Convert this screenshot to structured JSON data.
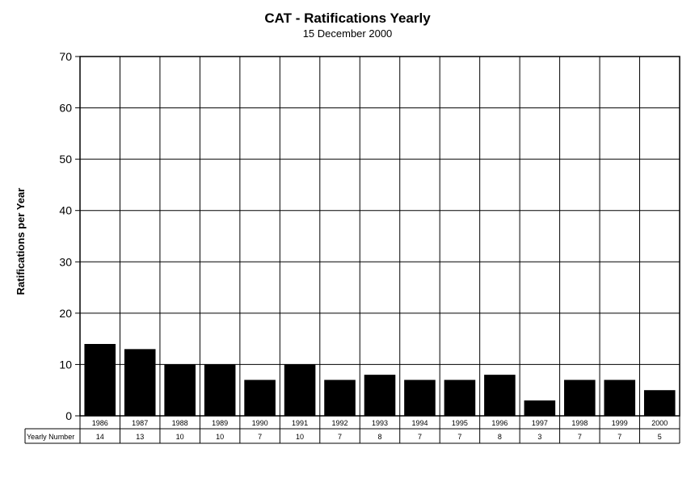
{
  "chart_data": {
    "type": "bar",
    "title": "CAT - Ratifications Yearly",
    "subtitle": "15 December 2000",
    "ylabel": "Ratifications per Year",
    "xlabel": "",
    "ylim": [
      0,
      70
    ],
    "yticks": [
      0,
      10,
      20,
      30,
      40,
      50,
      60,
      70
    ],
    "grid": true,
    "legend": "none",
    "bar_color": "#000000",
    "categories": [
      "1986",
      "1987",
      "1988",
      "1989",
      "1990",
      "1991",
      "1992",
      "1993",
      "1994",
      "1995",
      "1996",
      "1997",
      "1998",
      "1999",
      "2000"
    ],
    "values": [
      14,
      13,
      10,
      10,
      7,
      10,
      7,
      8,
      7,
      7,
      8,
      3,
      7,
      7,
      5
    ],
    "table": {
      "row_label": "Yearly Number",
      "values": [
        "14",
        "13",
        "10",
        "10",
        "7",
        "10",
        "7",
        "8",
        "7",
        "7",
        "8",
        "3",
        "7",
        "7",
        "5"
      ]
    }
  }
}
